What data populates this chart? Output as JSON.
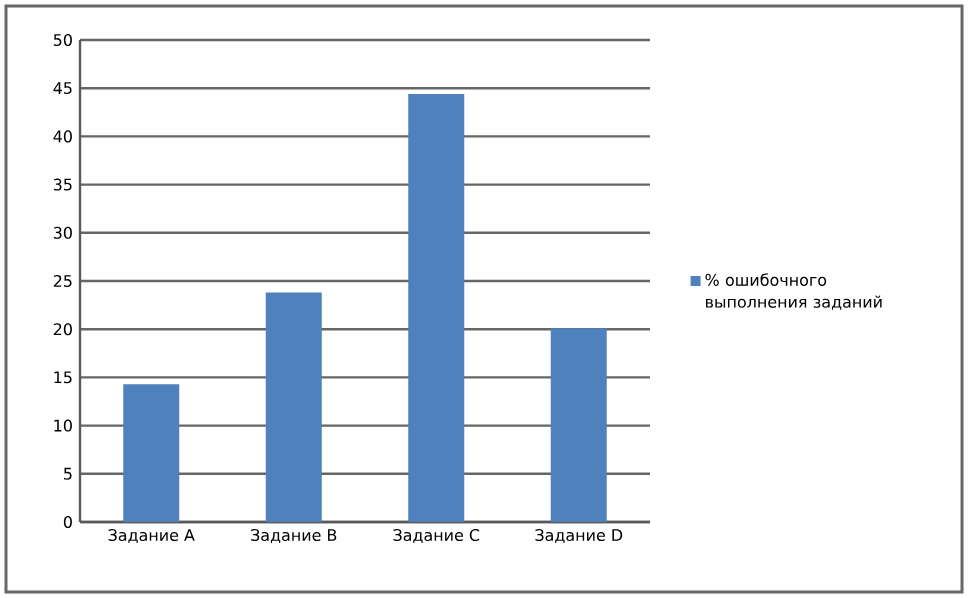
{
  "chart_data": {
    "type": "bar",
    "categories": [
      "Задание  A",
      "Задание  B",
      "Задание  C",
      "Задание  D"
    ],
    "series": [
      {
        "name": "% ошибочного выполнения  заданий",
        "color": "#4f81bd",
        "values": [
          14.3,
          23.8,
          44.4,
          20.1
        ]
      }
    ],
    "ylim": [
      0,
      50
    ],
    "yticks": [
      0,
      5,
      10,
      15,
      20,
      25,
      30,
      35,
      40,
      45,
      50
    ],
    "grid": "y",
    "legend": "right"
  }
}
